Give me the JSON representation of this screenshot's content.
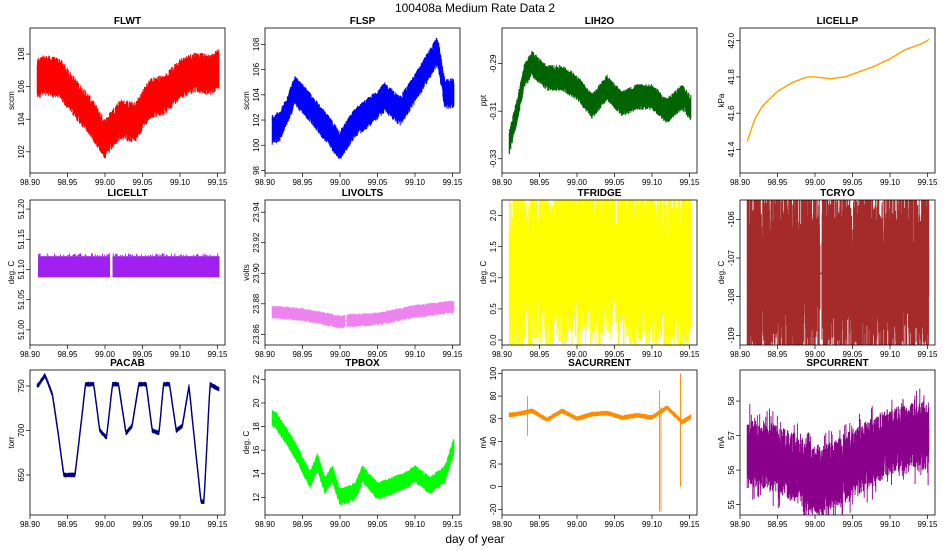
{
  "title": "100408a   Medium Rate Data 2",
  "xlabel": "day of year",
  "chart_data": [
    {
      "type": "line",
      "title": "FLWT",
      "ylabel": "sccm",
      "color": "#ff0000",
      "xlim": [
        98.9,
        99.16
      ],
      "ylim": [
        100.7,
        109.6
      ],
      "yticks": [
        "102",
        "104",
        "106",
        "108"
      ],
      "ytick_values": [
        102,
        104,
        106,
        108
      ],
      "xticks": [
        "98.90",
        "98.95",
        "99.00",
        "99.05",
        "99.10",
        "99.15"
      ],
      "xtick_values": [
        98.9,
        98.95,
        99.0,
        99.05,
        99.1,
        99.15
      ],
      "x": [
        98.9,
        98.92,
        98.94,
        98.96,
        98.98,
        99.0,
        99.02,
        99.04,
        99.06,
        99.08,
        99.1,
        99.12,
        99.14,
        99.16
      ],
      "values": [
        106.3,
        106.7,
        106.5,
        105.3,
        104.2,
        102.8,
        104.0,
        103.8,
        105.3,
        105.5,
        106.5,
        106.9,
        106.7,
        107.4
      ],
      "noise": 2.3,
      "noise_type": "band"
    },
    {
      "type": "line",
      "title": "FLSP",
      "ylabel": "sccm",
      "color": "#0000ff",
      "xlim": [
        98.9,
        99.16
      ],
      "ylim": [
        97.8,
        109.3
      ],
      "yticks": [
        "98",
        "100",
        "102",
        "104",
        "106",
        "108"
      ],
      "ytick_values": [
        98,
        100,
        102,
        104,
        106,
        108
      ],
      "xticks": [
        "98.90",
        "98.95",
        "99.00",
        "99.05",
        "99.10",
        "99.15"
      ],
      "xtick_values": [
        98.9,
        98.95,
        99.0,
        99.05,
        99.1,
        99.15
      ],
      "x": [
        98.9,
        98.92,
        98.94,
        98.96,
        98.98,
        99.0,
        99.02,
        99.04,
        99.06,
        99.08,
        99.1,
        99.12,
        99.13,
        99.14,
        99.16
      ],
      "values": [
        101.0,
        101.5,
        104.3,
        103.0,
        101.5,
        100.0,
        101.8,
        102.7,
        103.8,
        102.7,
        104.5,
        106.5,
        107.5,
        104.0,
        104.3
      ],
      "noise": 2.2,
      "noise_type": "band"
    },
    {
      "type": "line",
      "title": "LIH2O",
      "ylabel": "ppt",
      "color": "#006400",
      "xlim": [
        98.9,
        99.16
      ],
      "ylim": [
        -0.336,
        -0.275
      ],
      "yticks": [
        "-0.33",
        "-0.31",
        "-0.29"
      ],
      "ytick_values": [
        -0.33,
        -0.31,
        -0.29
      ],
      "xticks": [
        "98.90",
        "98.95",
        "99.00",
        "99.05",
        "99.10",
        "99.15"
      ],
      "xtick_values": [
        98.9,
        98.95,
        99.0,
        99.05,
        99.1,
        99.15
      ],
      "x": [
        98.9,
        98.91,
        98.92,
        98.93,
        98.94,
        98.96,
        98.98,
        99.0,
        99.02,
        99.04,
        99.06,
        99.08,
        99.1,
        99.12,
        99.14,
        99.16
      ],
      "values": [
        -0.323,
        -0.323,
        -0.31,
        -0.295,
        -0.29,
        -0.296,
        -0.296,
        -0.3,
        -0.308,
        -0.3,
        -0.307,
        -0.304,
        -0.304,
        -0.31,
        -0.304,
        -0.312
      ],
      "noise": 0.01,
      "noise_type": "band"
    },
    {
      "type": "line",
      "title": "LICELLP",
      "ylabel": "kPa",
      "color": "#ffa500",
      "xlim": [
        98.9,
        99.16
      ],
      "ylim": [
        41.27,
        42.07
      ],
      "yticks": [
        "41.4",
        "41.6",
        "41.8",
        "42.0"
      ],
      "ytick_values": [
        41.4,
        41.6,
        41.8,
        42.0
      ],
      "xticks": [
        "98.90",
        "98.95",
        "99.00",
        "99.05",
        "99.10",
        "99.15"
      ],
      "xtick_values": [
        98.9,
        98.95,
        99.0,
        99.05,
        99.1,
        99.15
      ],
      "x": [
        98.9,
        98.91,
        98.92,
        98.93,
        98.94,
        98.95,
        98.97,
        98.99,
        99.0,
        99.02,
        99.04,
        99.06,
        99.08,
        99.1,
        99.12,
        99.14,
        99.15,
        99.16
      ],
      "values": [
        41.29,
        41.45,
        41.57,
        41.64,
        41.68,
        41.72,
        41.77,
        41.8,
        41.8,
        41.79,
        41.8,
        41.83,
        41.86,
        41.9,
        41.95,
        41.98,
        42.0,
        42.05
      ],
      "noise": 0.006,
      "noise_type": "band"
    },
    {
      "type": "line",
      "title": "LICELLT",
      "ylabel": "deg. C",
      "color": "#a020f0",
      "xlim": [
        98.9,
        99.16
      ],
      "ylim": [
        50.975,
        51.215
      ],
      "yticks": [
        "51.00",
        "51.05",
        "51.10",
        "51.15",
        "51.20"
      ],
      "ytick_values": [
        51.0,
        51.05,
        51.1,
        51.15,
        51.2
      ],
      "xticks": [
        "98.90",
        "98.95",
        "99.00",
        "99.05",
        "99.10",
        "99.15"
      ],
      "xtick_values": [
        98.9,
        98.95,
        99.0,
        99.05,
        99.1,
        99.15
      ],
      "x": [
        98.9,
        99.16
      ],
      "values": [
        51.1,
        51.1
      ],
      "band": [
        51.087,
        51.122
      ],
      "noise_type": "solid",
      "gap_at": 99.008
    },
    {
      "type": "line",
      "title": "LIVOLTS",
      "ylabel": "volts",
      "color": "#ee82ee",
      "xlim": [
        98.9,
        99.16
      ],
      "ylim": [
        23.853,
        23.948
      ],
      "yticks": [
        "23.86",
        "23.88",
        "23.90",
        "23.92",
        "23.94"
      ],
      "ytick_values": [
        23.86,
        23.88,
        23.9,
        23.92,
        23.94
      ],
      "xticks": [
        "98.90",
        "98.95",
        "99.00",
        "99.05",
        "99.10",
        "99.15"
      ],
      "xtick_values": [
        98.9,
        98.95,
        99.0,
        99.05,
        99.1,
        99.15
      ],
      "x": [
        98.9,
        98.95,
        99.0,
        99.01,
        99.05,
        99.1,
        99.15
      ],
      "values": [
        23.875,
        23.873,
        23.868,
        23.869,
        23.87,
        23.875,
        23.878
      ],
      "noise": 0.008,
      "noise_type": "band",
      "gap_at": 99.008
    },
    {
      "type": "line",
      "title": "TFRIDGE",
      "ylabel": "deg. C",
      "color": "#ffff00",
      "xlim": [
        98.9,
        99.16
      ],
      "ylim": [
        -0.08,
        2.25
      ],
      "yticks": [
        "0.0",
        "0.5",
        "1.0",
        "1.5",
        "2.0"
      ],
      "ytick_values": [
        0,
        0.5,
        1.0,
        1.5,
        2.0
      ],
      "xticks": [
        "98.90",
        "98.95",
        "99.00",
        "99.05",
        "99.10",
        "99.15"
      ],
      "xtick_values": [
        98.9,
        98.95,
        99.0,
        99.05,
        99.1,
        99.15
      ],
      "x": [
        98.9,
        98.95,
        99.0,
        99.01,
        99.05,
        99.1,
        99.15
      ],
      "values": [
        1.0,
        1.2,
        1.3,
        1.45,
        1.3,
        1.2,
        1.1
      ],
      "noise": 1.3,
      "noise_type": "spiky"
    },
    {
      "type": "line",
      "title": "TCRYO",
      "ylabel": "deg. C",
      "color": "#a52a2a",
      "xlim": [
        98.9,
        99.16
      ],
      "ylim": [
        -109.25,
        -105.5
      ],
      "yticks": [
        "-109",
        "-108",
        "-107",
        "-106"
      ],
      "ytick_values": [
        -109,
        -108,
        -107,
        -106
      ],
      "xticks": [
        "98.90",
        "98.95",
        "99.00",
        "99.05",
        "99.10",
        "99.15"
      ],
      "xtick_values": [
        98.9,
        98.95,
        99.0,
        99.05,
        99.1,
        99.15
      ],
      "x": [
        98.9,
        99.16
      ],
      "values": [
        -107.4,
        -107.4
      ],
      "noise": 2.3,
      "noise_type": "spiky",
      "gap_at": 99.008
    },
    {
      "type": "line",
      "title": "PACAB",
      "ylabel": "torr",
      "color": "#000080",
      "xlim": [
        98.9,
        99.16
      ],
      "ylim": [
        605,
        768
      ],
      "yticks": [
        "650",
        "700",
        "750"
      ],
      "ytick_values": [
        650,
        700,
        750
      ],
      "xticks": [
        "98.90",
        "98.95",
        "99.00",
        "99.05",
        "99.10",
        "99.15"
      ],
      "xtick_values": [
        98.9,
        98.95,
        99.0,
        99.05,
        99.1,
        99.15
      ],
      "x": [
        98.9,
        98.91,
        98.92,
        98.93,
        98.937,
        98.945,
        98.96,
        98.967,
        98.974,
        98.985,
        98.993,
        99.002,
        99.01,
        99.018,
        99.028,
        99.036,
        99.045,
        99.055,
        99.063,
        99.072,
        99.078,
        99.086,
        99.095,
        99.103,
        99.112,
        99.118,
        99.128,
        99.132,
        99.14,
        99.15,
        99.16
      ],
      "values": [
        752,
        750,
        762,
        740,
        700,
        650,
        650,
        700,
        752,
        752,
        700,
        692,
        752,
        752,
        697,
        705,
        752,
        752,
        700,
        697,
        752,
        752,
        700,
        705,
        750,
        700,
        620,
        620,
        752,
        747,
        746
      ],
      "noise": 5,
      "noise_type": "band"
    },
    {
      "type": "line",
      "title": "TPBOX",
      "ylabel": "deg. C",
      "color": "#00ff00",
      "xlim": [
        98.9,
        99.16
      ],
      "ylim": [
        10.5,
        22.8
      ],
      "yticks": [
        "12",
        "14",
        "16",
        "18",
        "20",
        "22"
      ],
      "ytick_values": [
        12,
        14,
        16,
        18,
        20,
        22
      ],
      "xticks": [
        "98.90",
        "98.95",
        "99.00",
        "99.05",
        "99.10",
        "99.15"
      ],
      "xtick_values": [
        98.9,
        98.95,
        99.0,
        99.05,
        99.1,
        99.15
      ],
      "x": [
        98.9,
        98.905,
        98.915,
        98.93,
        98.94,
        98.96,
        98.97,
        98.98,
        98.99,
        99.0,
        99.02,
        99.03,
        99.05,
        99.07,
        99.09,
        99.1,
        99.12,
        99.14,
        99.155,
        99.16
      ],
      "values": [
        22.5,
        19,
        18.5,
        17,
        16,
        13.5,
        15,
        13,
        14,
        12,
        12.5,
        14,
        12.5,
        13,
        13.5,
        14,
        13,
        14,
        17,
        16.5
      ],
      "noise": 1.4,
      "noise_type": "band"
    },
    {
      "type": "line",
      "title": "SACURRENT",
      "ylabel": "mA",
      "color": "#ff8c00",
      "xlim": [
        98.9,
        99.16
      ],
      "ylim": [
        -25,
        103
      ],
      "yticks": [
        "-20",
        "0",
        "20",
        "40",
        "60",
        "80",
        "100"
      ],
      "ytick_values": [
        -20,
        0,
        20,
        40,
        60,
        80,
        100
      ],
      "xticks": [
        "98.90",
        "98.95",
        "99.00",
        "99.05",
        "99.10",
        "99.15"
      ],
      "xtick_values": [
        98.9,
        98.95,
        99.0,
        99.05,
        99.1,
        99.15
      ],
      "x": [
        98.9,
        98.92,
        98.94,
        98.96,
        98.98,
        99.0,
        99.02,
        99.04,
        99.06,
        99.08,
        99.1,
        99.12,
        99.14,
        99.16
      ],
      "values": [
        63,
        64,
        67,
        59,
        67,
        60,
        64,
        65,
        61,
        63,
        61,
        70,
        57,
        65
      ],
      "noise": 4,
      "noise_type": "band",
      "spikes": [
        [
          98.934,
          45,
          80
        ],
        [
          99.11,
          -22,
          85
        ],
        [
          99.112,
          -22,
          70
        ],
        [
          99.138,
          0,
          100
        ]
      ]
    },
    {
      "type": "line",
      "title": "SPCURRENT",
      "ylabel": "mA",
      "color": "#8b008b",
      "xlim": [
        98.9,
        99.16
      ],
      "ylim": [
        54.7,
        58.9
      ],
      "yticks": [
        "55",
        "56",
        "57",
        "58"
      ],
      "ytick_values": [
        55,
        56,
        57,
        58
      ],
      "xticks": [
        "98.90",
        "98.95",
        "99.00",
        "99.05",
        "99.10",
        "99.15"
      ],
      "xtick_values": [
        98.9,
        98.95,
        99.0,
        99.05,
        99.1,
        99.15
      ],
      "x": [
        98.9,
        98.92,
        98.94,
        98.96,
        98.98,
        99.0,
        99.02,
        99.04,
        99.06,
        99.08,
        99.1,
        99.12,
        99.14,
        99.16
      ],
      "values": [
        56.6,
        56.5,
        56.4,
        56.2,
        56.0,
        55.6,
        55.8,
        56.1,
        56.3,
        56.6,
        56.8,
        56.9,
        57.0,
        56.8
      ],
      "noise": 1.0,
      "noise_type": "spiky"
    }
  ]
}
